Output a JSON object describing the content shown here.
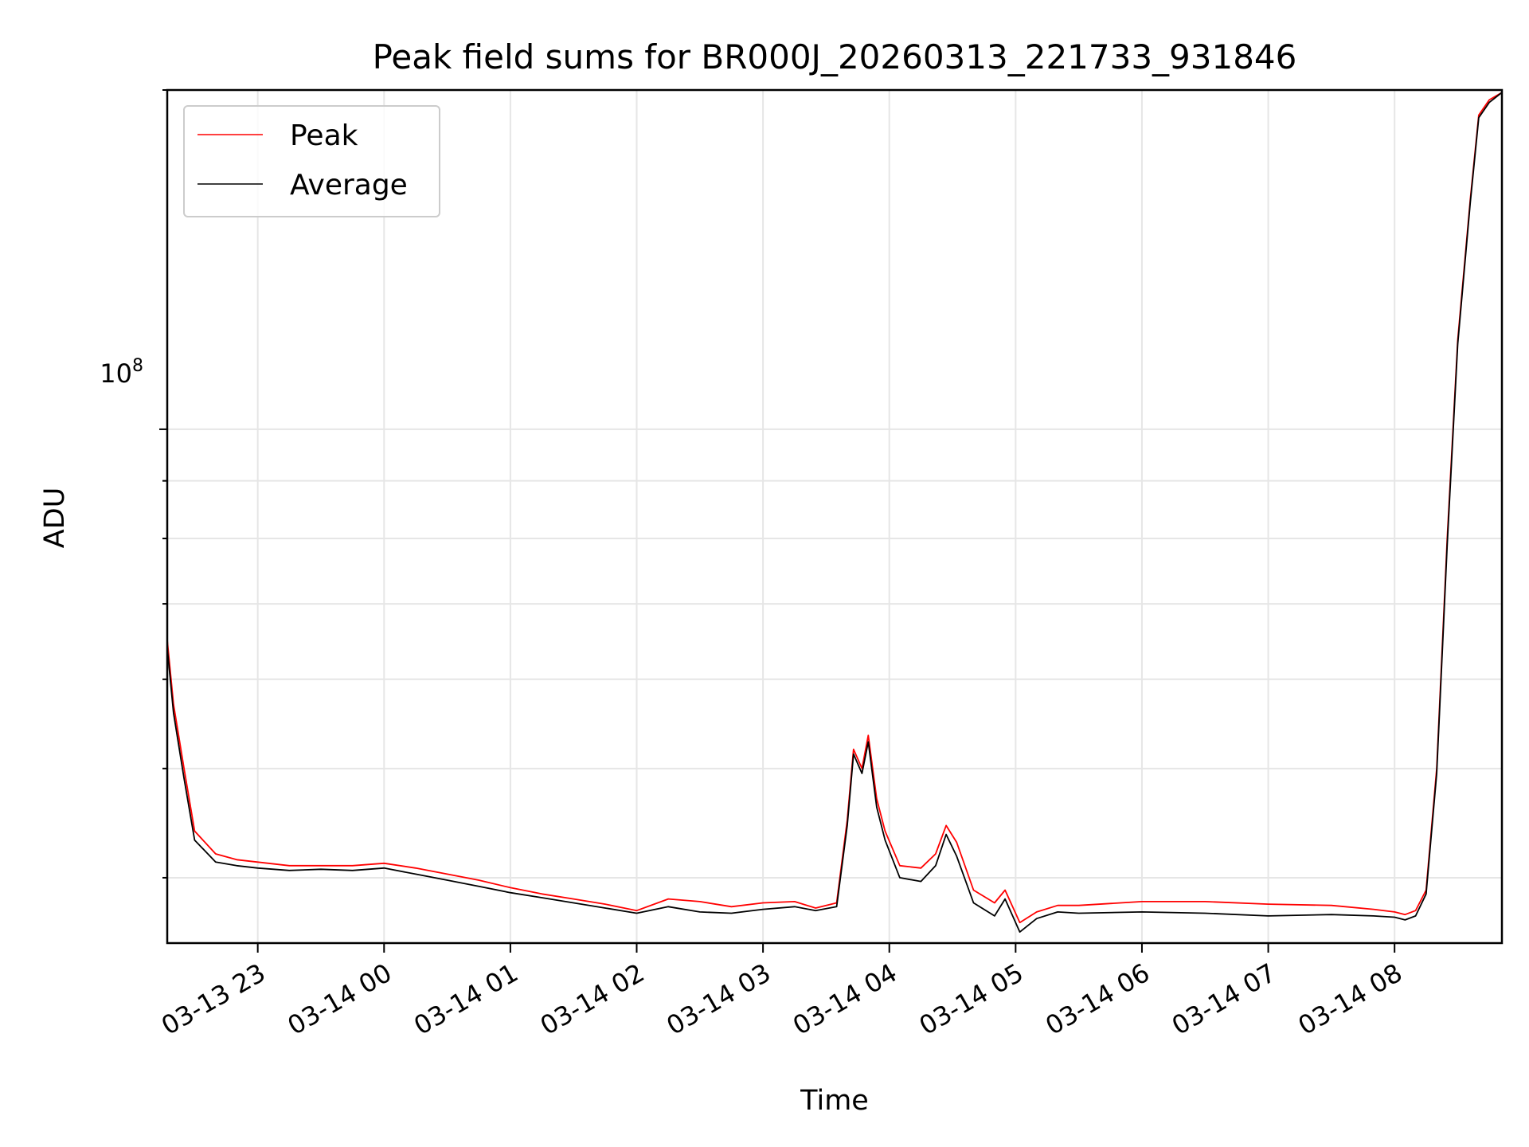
{
  "chart_data": {
    "type": "line",
    "title": "Peak field sums for BR000J_20260313_221733_931846",
    "xlabel": "Time",
    "ylabel": "ADU",
    "y_scale": "log",
    "ylim": [
      35000000,
      200000000
    ],
    "xlim": [
      "03-13 22:17",
      "03-14 08:51"
    ],
    "x_ticks": [
      "03-13 23",
      "03-14 00",
      "03-14 01",
      "03-14 02",
      "03-14 03",
      "03-14 04",
      "03-14 05",
      "03-14 06",
      "03-14 07",
      "03-14 08"
    ],
    "y_tick_label": {
      "base": "10",
      "exponent": "8"
    },
    "grid": true,
    "legend_position": "top-left",
    "colors": {
      "peak": "#ff0000",
      "average": "#000000"
    },
    "series": [
      {
        "name": "Peak",
        "x": [
          "03-13 22:17",
          "03-13 22:20",
          "03-13 22:25",
          "03-13 22:30",
          "03-13 22:40",
          "03-13 22:50",
          "03-13 23:00",
          "03-13 23:15",
          "03-13 23:30",
          "03-13 23:45",
          "03-14 00:00",
          "03-14 00:15",
          "03-14 00:30",
          "03-14 00:45",
          "03-14 01:00",
          "03-14 01:15",
          "03-14 01:30",
          "03-14 01:45",
          "03-14 02:00",
          "03-14 02:15",
          "03-14 02:30",
          "03-14 02:45",
          "03-14 03:00",
          "03-14 03:15",
          "03-14 03:25",
          "03-14 03:35",
          "03-14 03:40",
          "03-14 03:43",
          "03-14 03:47",
          "03-14 03:50",
          "03-14 03:54",
          "03-14 03:58",
          "03-14 04:05",
          "03-14 04:15",
          "03-14 04:22",
          "03-14 04:27",
          "03-14 04:32",
          "03-14 04:40",
          "03-14 04:50",
          "03-14 04:55",
          "03-14 05:02",
          "03-14 05:10",
          "03-14 05:20",
          "03-14 05:30",
          "03-14 06:00",
          "03-14 06:30",
          "03-14 07:00",
          "03-14 07:30",
          "03-14 07:50",
          "03-14 08:00",
          "03-14 08:05",
          "03-14 08:10",
          "03-14 08:15",
          "03-14 08:20",
          "03-14 08:25",
          "03-14 08:30",
          "03-14 08:36",
          "03-14 08:40",
          "03-14 08:45",
          "03-14 08:51"
        ],
        "y": [
          65000000,
          57000000,
          50000000,
          44000000,
          42000000,
          41500000,
          41300000,
          41000000,
          41000000,
          41000000,
          41200000,
          40800000,
          40300000,
          39800000,
          39200000,
          38700000,
          38300000,
          37900000,
          37400000,
          38300000,
          38100000,
          37700000,
          38000000,
          38100000,
          37600000,
          38000000,
          45000000,
          52000000,
          50000000,
          53500000,
          47000000,
          44000000,
          41000000,
          40800000,
          42000000,
          44500000,
          43000000,
          39000000,
          38000000,
          39000000,
          36500000,
          37300000,
          37800000,
          37800000,
          38100000,
          38100000,
          37900000,
          37800000,
          37500000,
          37300000,
          37100000,
          37400000,
          39000000,
          50000000,
          80000000,
          120000000,
          160000000,
          190000000,
          196000000,
          199000000
        ]
      },
      {
        "name": "Average",
        "x": [
          "03-13 22:17",
          "03-13 22:20",
          "03-13 22:25",
          "03-13 22:30",
          "03-13 22:40",
          "03-13 22:50",
          "03-13 23:00",
          "03-13 23:15",
          "03-13 23:30",
          "03-13 23:45",
          "03-14 00:00",
          "03-14 00:15",
          "03-14 00:30",
          "03-14 00:45",
          "03-14 01:00",
          "03-14 01:15",
          "03-14 01:30",
          "03-14 01:45",
          "03-14 02:00",
          "03-14 02:15",
          "03-14 02:30",
          "03-14 02:45",
          "03-14 03:00",
          "03-14 03:15",
          "03-14 03:25",
          "03-14 03:35",
          "03-14 03:40",
          "03-14 03:43",
          "03-14 03:47",
          "03-14 03:50",
          "03-14 03:54",
          "03-14 03:58",
          "03-14 04:05",
          "03-14 04:15",
          "03-14 04:22",
          "03-14 04:27",
          "03-14 04:32",
          "03-14 04:40",
          "03-14 04:50",
          "03-14 04:55",
          "03-14 05:02",
          "03-14 05:10",
          "03-14 05:20",
          "03-14 05:30",
          "03-14 06:00",
          "03-14 06:30",
          "03-14 07:00",
          "03-14 07:30",
          "03-14 07:50",
          "03-14 08:00",
          "03-14 08:05",
          "03-14 08:10",
          "03-14 08:15",
          "03-14 08:20",
          "03-14 08:25",
          "03-14 08:30",
          "03-14 08:36",
          "03-14 08:40",
          "03-14 08:45",
          "03-14 08:51"
        ],
        "y": [
          64000000,
          56000000,
          49000000,
          43200000,
          41300000,
          41000000,
          40800000,
          40600000,
          40700000,
          40600000,
          40800000,
          40300000,
          39800000,
          39300000,
          38800000,
          38400000,
          38000000,
          37600000,
          37200000,
          37700000,
          37300000,
          37200000,
          37500000,
          37700000,
          37400000,
          37700000,
          44500000,
          51500000,
          49500000,
          52800000,
          46200000,
          43200000,
          40000000,
          39700000,
          41000000,
          43700000,
          41800000,
          38000000,
          37000000,
          38300000,
          35800000,
          36800000,
          37300000,
          37200000,
          37300000,
          37200000,
          37000000,
          37100000,
          37000000,
          36900000,
          36700000,
          37000000,
          38700000,
          49500000,
          79000000,
          119000000,
          159000000,
          189000000,
          195000000,
          199000000
        ]
      }
    ]
  }
}
